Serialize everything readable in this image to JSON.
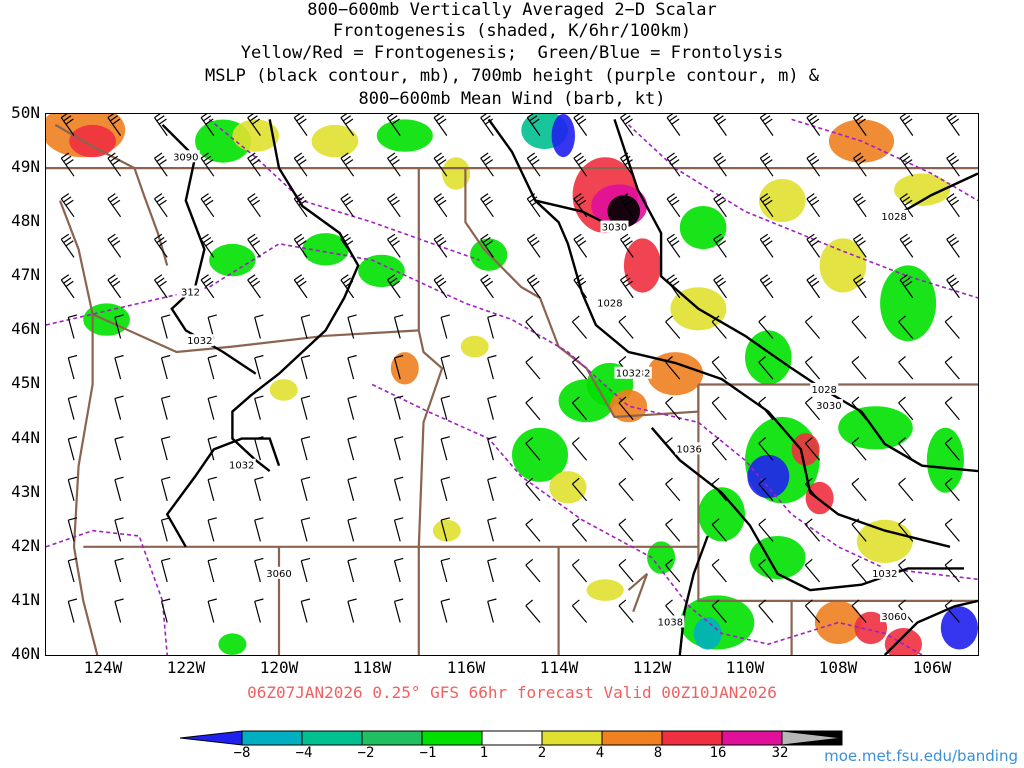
{
  "title": {
    "lines": [
      "800−600mb Vertically Averaged 2−D Scalar",
      "Frontogenesis (shaded, K/6hr/100km)",
      "Yellow/Red = Frontogenesis;  Green/Blue = Frontolysis",
      "MSLP (black contour, mb), 700mb height (purple contour, m) &",
      "800−600mb Mean Wind (barb, kt)"
    ]
  },
  "axes": {
    "lat_labels": [
      "50N",
      "49N",
      "48N",
      "47N",
      "46N",
      "45N",
      "44N",
      "43N",
      "42N",
      "41N",
      "40N"
    ],
    "lat_values": [
      50,
      49,
      48,
      47,
      46,
      45,
      44,
      43,
      42,
      41,
      40
    ],
    "lon_labels": [
      "124W",
      "122W",
      "120W",
      "118W",
      "116W",
      "114W",
      "112W",
      "110W",
      "108W",
      "106W"
    ],
    "lon_values": [
      -124,
      -122,
      -120,
      -118,
      -116,
      -114,
      -112,
      -110,
      -108,
      -106
    ],
    "lon_range": [
      -125.0,
      -105.0
    ],
    "lat_range": [
      40.0,
      50.0
    ]
  },
  "forecast_label": "06Z07JAN2026 0.25° GFS 66hr forecast Valid 00Z10JAN2026",
  "colorbar": {
    "labels": [
      "−8",
      "−4",
      "−2",
      "−1",
      "1",
      "2",
      "4",
      "8",
      "16",
      "32"
    ],
    "colors": [
      "#2020f0",
      "#00b0c0",
      "#00c090",
      "#20c060",
      "#00e000",
      "#ffffff",
      "#e0e030",
      "#f08020",
      "#f03040",
      "#e0109a",
      "#000000",
      "#b8b8b8"
    ]
  },
  "contour_labels": {
    "mslp": [
      "3090",
      "3030",
      "1028",
      "1028",
      "312",
      "1032",
      "1032",
      "3060",
      "1032",
      "1028",
      "3030",
      "1036",
      "1032",
      "1032",
      "1038",
      "3060"
    ],
    "mslp_positions": [
      [
        -122.0,
        49.2
      ],
      [
        -112.8,
        47.9
      ],
      [
        -112.9,
        46.5
      ],
      [
        -106.8,
        48.1
      ],
      [
        -121.9,
        46.7
      ],
      [
        -121.7,
        45.8
      ],
      [
        -120.8,
        43.5
      ],
      [
        -120.0,
        41.5
      ],
      [
        -112.3,
        45.2
      ],
      [
        -108.3,
        44.9
      ],
      [
        -108.2,
        44.6
      ],
      [
        -111.2,
        43.8
      ],
      [
        -107.0,
        41.5
      ],
      [
        -112.5,
        45.2
      ],
      [
        -111.6,
        40.6
      ],
      [
        -106.8,
        40.7
      ]
    ]
  },
  "map_colors": {
    "pressure_contour": "#000000",
    "height_contour": "#a020c0",
    "boundary": "#8b6450",
    "barb": "#000000"
  },
  "credit": "moe.met.fsu.edu/banding"
}
